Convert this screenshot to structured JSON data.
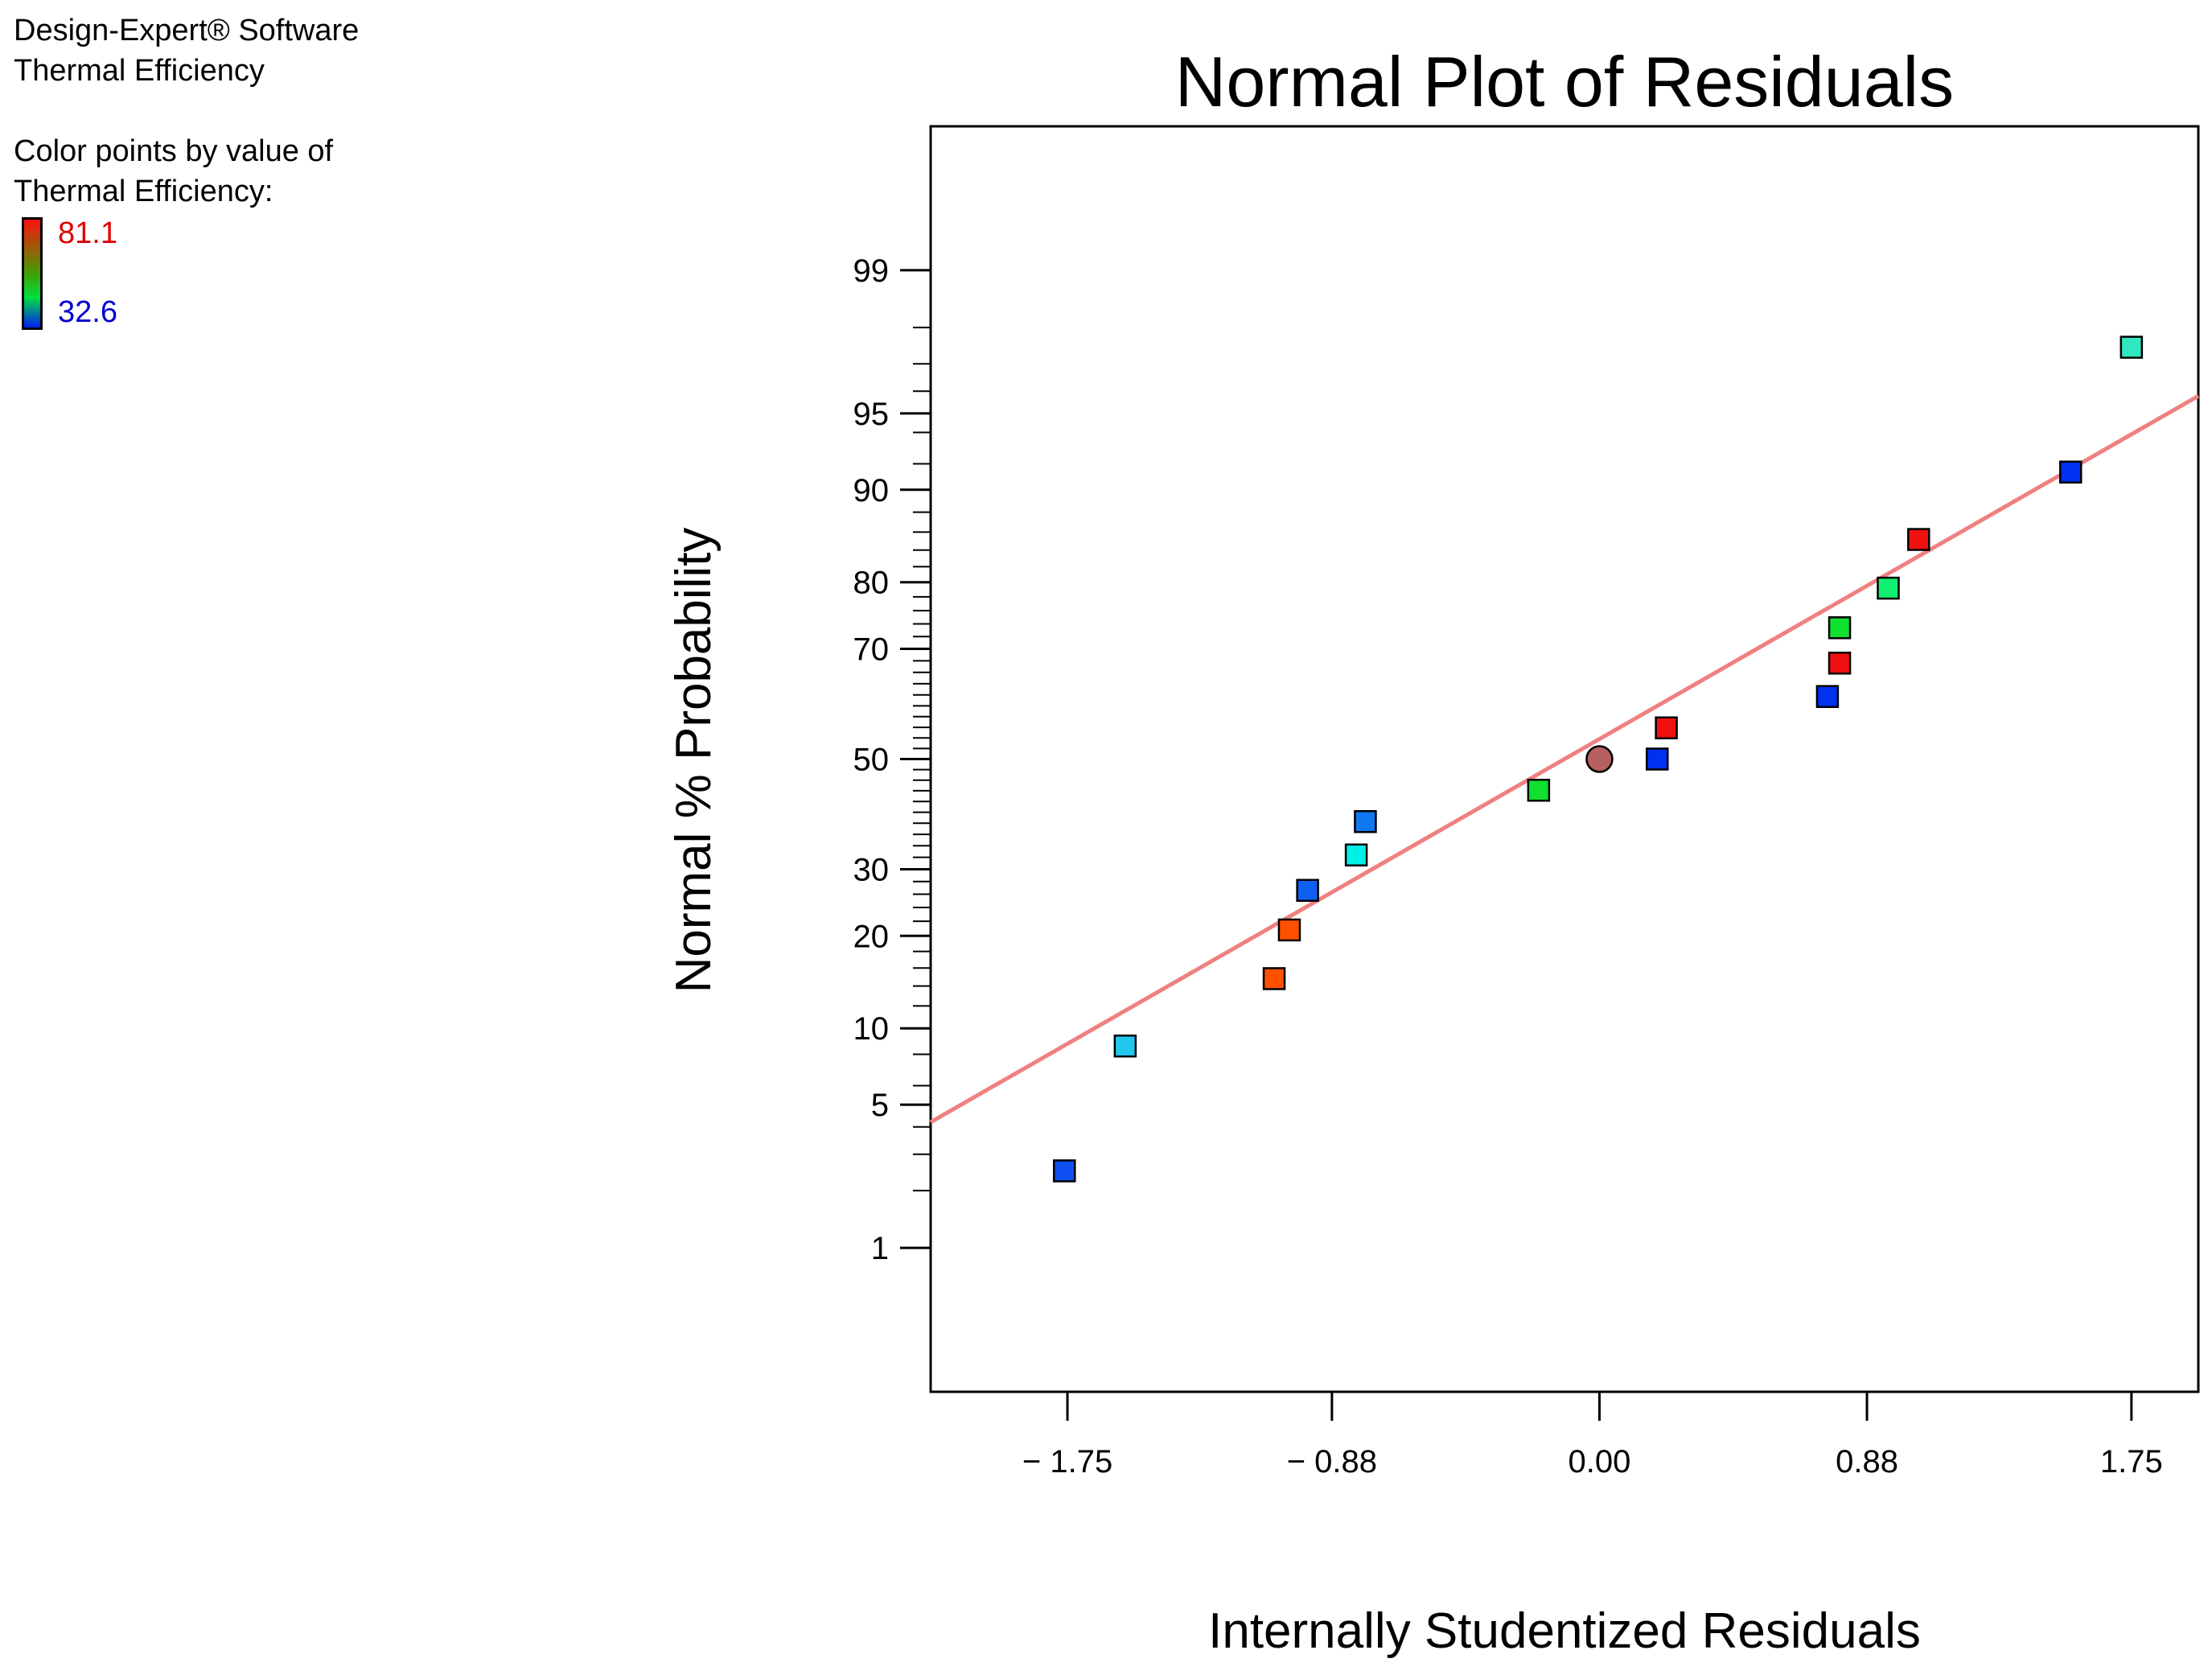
{
  "header": {
    "software": "Design-Expert® Software",
    "response": "Thermal Efficiency",
    "color_caption_1": "Color points by value of",
    "color_caption_2": "Thermal Efficiency:",
    "scale_max": "81.1",
    "scale_min": "32.6",
    "colors": {
      "max": "#e00000",
      "min": "#0000d0"
    }
  },
  "chart_data": {
    "type": "scatter",
    "title": "Normal Plot of Residuals",
    "xlabel": "Internally Studentized Residuals",
    "ylabel": "Normal % Probability",
    "y_scale": "normal-probability",
    "xlim": [
      -2.2,
      1.97
    ],
    "ylim": [
      0.13,
      99.87
    ],
    "x_ticks": [
      -1.75,
      -0.88,
      0.0,
      0.88,
      1.75
    ],
    "x_tick_labels": [
      "− 1.75",
      "− 0.88",
      "0.00",
      "0.88",
      "1.75"
    ],
    "y_ticks": [
      1,
      5,
      10,
      20,
      30,
      50,
      70,
      80,
      90,
      95,
      99
    ],
    "y_tick_labels": [
      "1",
      "5",
      "10",
      "20",
      "30",
      "50",
      "70",
      "80",
      "90",
      "95",
      "99"
    ],
    "fit_line": {
      "color": "#f08080",
      "x": [
        -2.2,
        1.97
      ],
      "y": [
        4.2,
        95.8
      ]
    },
    "points": [
      {
        "x": -1.76,
        "y": 2.5,
        "color": "#1050f0",
        "marker": "square"
      },
      {
        "x": -1.56,
        "y": 8.6,
        "color": "#20c8f0",
        "marker": "square"
      },
      {
        "x": -1.07,
        "y": 14.8,
        "color": "#ff5000",
        "marker": "square"
      },
      {
        "x": -1.02,
        "y": 20.8,
        "color": "#ff5000",
        "marker": "square"
      },
      {
        "x": -0.96,
        "y": 26.6,
        "color": "#1060f0",
        "marker": "square"
      },
      {
        "x": -0.8,
        "y": 32.4,
        "color": "#00f0e8",
        "marker": "square"
      },
      {
        "x": -0.77,
        "y": 38.3,
        "color": "#1078f0",
        "marker": "square"
      },
      {
        "x": -0.2,
        "y": 44.1,
        "color": "#10e030",
        "marker": "square"
      },
      {
        "x": 0.0,
        "y": 50.0,
        "color": "#b86060",
        "marker": "circle"
      },
      {
        "x": 0.19,
        "y": 50.0,
        "color": "#0030f0",
        "marker": "square"
      },
      {
        "x": 0.22,
        "y": 55.9,
        "color": "#f01010",
        "marker": "square"
      },
      {
        "x": 0.75,
        "y": 61.7,
        "color": "#0030f0",
        "marker": "square"
      },
      {
        "x": 0.79,
        "y": 67.6,
        "color": "#f01010",
        "marker": "square"
      },
      {
        "x": 0.79,
        "y": 73.4,
        "color": "#10e030",
        "marker": "square"
      },
      {
        "x": 0.95,
        "y": 79.2,
        "color": "#10f070",
        "marker": "square"
      },
      {
        "x": 1.05,
        "y": 85.2,
        "color": "#f01010",
        "marker": "square"
      },
      {
        "x": 1.55,
        "y": 91.4,
        "color": "#0030f0",
        "marker": "square"
      },
      {
        "x": 1.75,
        "y": 97.5,
        "color": "#30e8c0",
        "marker": "square"
      }
    ]
  }
}
